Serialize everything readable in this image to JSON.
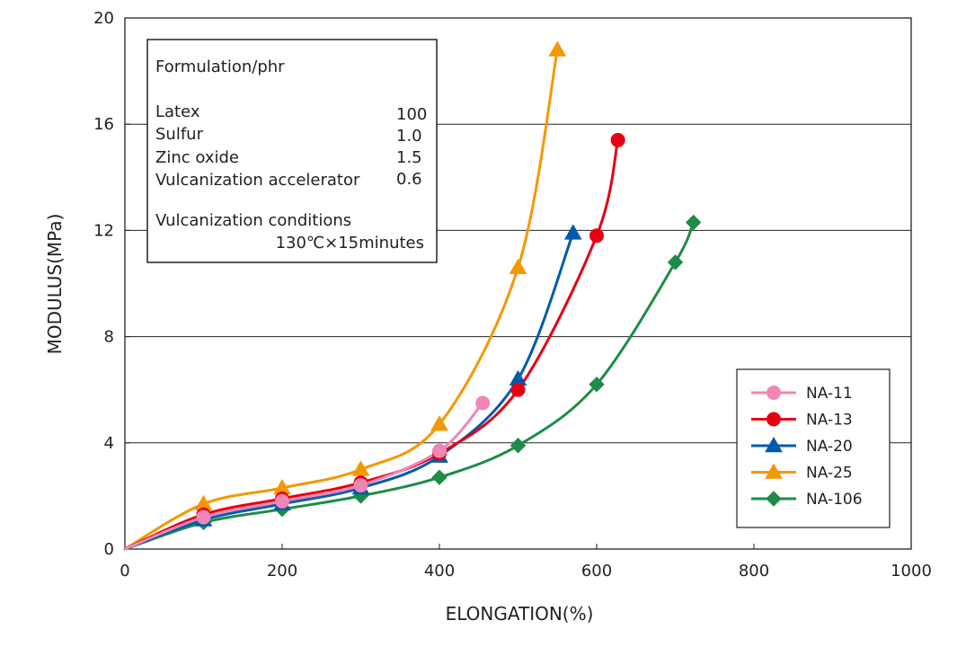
{
  "chart_data": {
    "type": "line",
    "xlabel": "ELONGATION(%)",
    "ylabel": "MODULUS(MPa)",
    "xlim": [
      0,
      1000
    ],
    "ylim": [
      0,
      20
    ],
    "x_ticks": [
      "0",
      "200",
      "400",
      "600",
      "800",
      "1000"
    ],
    "y_ticks": [
      "0",
      "4",
      "8",
      "12",
      "16",
      "20"
    ],
    "grid": "horizontal",
    "legend_position": "bottom-right",
    "series": [
      {
        "name": "NA-11",
        "color": "#ef86b5",
        "marker": "circle",
        "points": [
          [
            0,
            0
          ],
          [
            100,
            1.2
          ],
          [
            200,
            1.8
          ],
          [
            300,
            2.4
          ],
          [
            400,
            3.7
          ],
          [
            455,
            5.5
          ]
        ]
      },
      {
        "name": "NA-13",
        "color": "#e60012",
        "marker": "circle",
        "points": [
          [
            0,
            0
          ],
          [
            100,
            1.3
          ],
          [
            200,
            1.9
          ],
          [
            300,
            2.5
          ],
          [
            400,
            3.6
          ],
          [
            500,
            6.0
          ],
          [
            600,
            11.8
          ],
          [
            627,
            15.4
          ]
        ]
      },
      {
        "name": "NA-20",
        "color": "#005bac",
        "marker": "triangle",
        "points": [
          [
            0,
            0
          ],
          [
            100,
            1.1
          ],
          [
            200,
            1.7
          ],
          [
            300,
            2.3
          ],
          [
            400,
            3.5
          ],
          [
            500,
            6.4
          ],
          [
            570,
            11.9
          ]
        ]
      },
      {
        "name": "NA-25",
        "color": "#f39800",
        "marker": "triangle",
        "points": [
          [
            0,
            0
          ],
          [
            100,
            1.7
          ],
          [
            200,
            2.3
          ],
          [
            300,
            3.0
          ],
          [
            400,
            4.7
          ],
          [
            500,
            10.6
          ],
          [
            550,
            18.8
          ]
        ]
      },
      {
        "name": "NA-106",
        "color": "#1e8c46",
        "marker": "diamond",
        "points": [
          [
            0,
            0
          ],
          [
            100,
            1.0
          ],
          [
            200,
            1.5
          ],
          [
            300,
            2.0
          ],
          [
            400,
            2.7
          ],
          [
            500,
            3.9
          ],
          [
            600,
            6.2
          ],
          [
            700,
            10.8
          ],
          [
            723,
            12.3
          ]
        ]
      }
    ],
    "annotation": {
      "heading": "Formulation/phr",
      "rows": [
        {
          "label": "Latex",
          "value": "100"
        },
        {
          "label": "Sulfur",
          "value": "1.0"
        },
        {
          "label": "Zinc oxide",
          "value": "1.5"
        },
        {
          "label": "Vulcanization accelerator",
          "value": "0.6"
        }
      ],
      "conditions_label": "Vulcanization conditions",
      "conditions_value": "130℃×15minutes"
    }
  }
}
